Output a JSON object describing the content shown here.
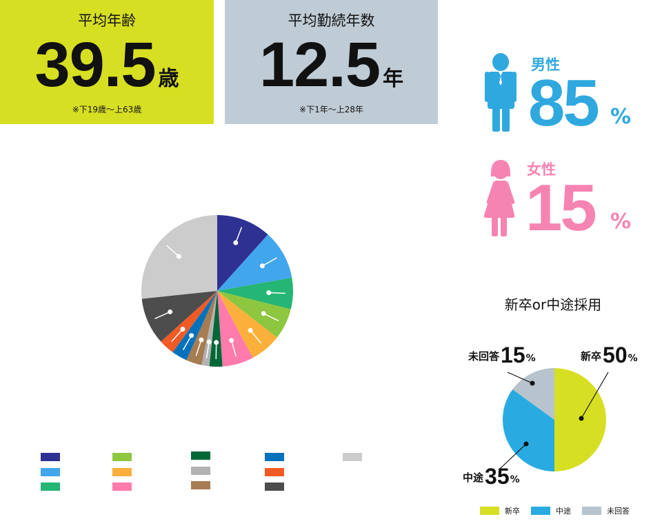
{
  "age_box": {
    "title": "平均年齢",
    "value": "39.5",
    "unit": "歳",
    "note": "※下19歳〜上63歳",
    "color": "#d7df23"
  },
  "tenure_box": {
    "title": "平均勤続年数",
    "value": "12.5",
    "unit": "年",
    "note": "※下1年〜上28年",
    "color": "#c0ccd5"
  },
  "gender": {
    "male": {
      "label": "男性",
      "value": "85",
      "unit": "%",
      "color": "#2fa8df",
      "icon": "man-icon"
    },
    "female": {
      "label": "女性",
      "value": "15",
      "unit": "%",
      "color": "#f684b2",
      "icon": "woman-icon"
    }
  },
  "chart_data": [
    {
      "type": "pie",
      "title": "",
      "slices": [
        {
          "color": "#2e3192",
          "value": 10.5
        },
        {
          "color": "#42a6ec",
          "value": 9.5
        },
        {
          "color": "#25b574",
          "value": 6
        },
        {
          "color": "#8dc63f",
          "value": 6
        },
        {
          "color": "#fbb03b",
          "value": 6
        },
        {
          "color": "#ff7bac",
          "value": 6
        },
        {
          "color": "#006837",
          "value": 2.5
        },
        {
          "color": "#b3b3b3",
          "value": 1.5
        },
        {
          "color": "#a67c52",
          "value": 3
        },
        {
          "color": "#0071bc",
          "value": 3
        },
        {
          "color": "#f15a24",
          "value": 3
        },
        {
          "color": "#4d4d4d",
          "value": 9
        },
        {
          "color": "#cccccc",
          "value": 24
        }
      ],
      "legend_placement": "bottom"
    },
    {
      "type": "pie",
      "title": "新卒or中途採用",
      "unit": "%",
      "slices": [
        {
          "name": "新卒",
          "value": 50,
          "color": "#d7df23"
        },
        {
          "name": "中途",
          "value": 35,
          "color": "#29abe2"
        },
        {
          "name": "未回答",
          "value": 15,
          "color": "#b7c4ce"
        }
      ],
      "legend_placement": "bottom"
    }
  ]
}
